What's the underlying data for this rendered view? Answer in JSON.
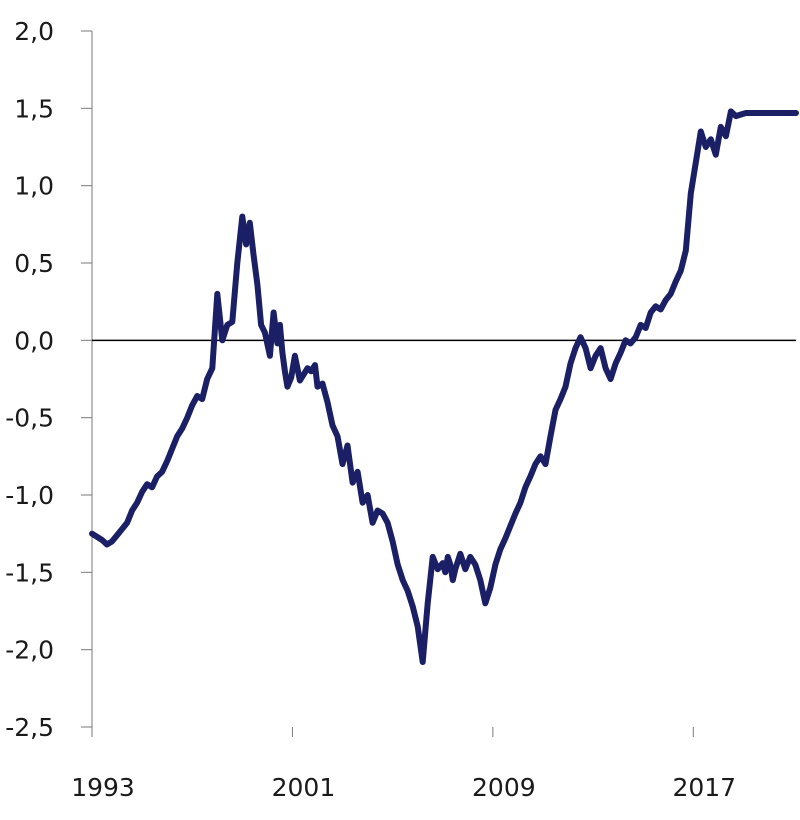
{
  "chart_data": {
    "type": "line",
    "title": "",
    "xlabel": "",
    "ylabel": "",
    "x_ticks": [
      {
        "value": 1993,
        "label": "1993"
      },
      {
        "value": 2001,
        "label": "2001"
      },
      {
        "value": 2009,
        "label": "2009"
      },
      {
        "value": 2017,
        "label": "2017"
      }
    ],
    "y_ticks": [
      {
        "value": 2.0,
        "label": "2,0"
      },
      {
        "value": 1.5,
        "label": "1,5"
      },
      {
        "value": 1.0,
        "label": "1,0"
      },
      {
        "value": 0.5,
        "label": "0,5"
      },
      {
        "value": 0.0,
        "label": "0,0"
      },
      {
        "value": -0.5,
        "label": "-0,5"
      },
      {
        "value": -1.0,
        "label": "-1,0"
      },
      {
        "value": -1.5,
        "label": "-1,5"
      },
      {
        "value": -2.0,
        "label": "-2,0"
      },
      {
        "value": -2.5,
        "label": "-2,5"
      }
    ],
    "xlim": [
      1993,
      2021.1
    ],
    "ylim": [
      -2.5,
      2.0
    ],
    "zero_line": true,
    "grid": false,
    "line_color": "#1b1f66",
    "series": [
      {
        "x": [
          1993.0,
          1993.2,
          1993.4,
          1993.6,
          1993.8,
          1994.0,
          1994.2,
          1994.4,
          1994.6,
          1994.8,
          1995.0,
          1995.2,
          1995.4,
          1995.6,
          1995.8,
          1996.0,
          1996.2,
          1996.4,
          1996.6,
          1996.8,
          1997.0,
          1997.2,
          1997.4,
          1997.6,
          1997.8,
          1998.0,
          1998.2,
          1998.4,
          1998.6,
          1998.8,
          1999.0,
          1999.15,
          1999.3,
          1999.45,
          1999.6,
          1999.75,
          1999.9,
          2000.1,
          2000.25,
          2000.4,
          2000.5,
          2000.6,
          2000.7,
          2000.8,
          2000.95,
          2001.1,
          2001.3,
          2001.45,
          2001.6,
          2001.75,
          2001.9,
          2002.0,
          2002.2,
          2002.4,
          2002.6,
          2002.8,
          2003.0,
          2003.2,
          2003.4,
          2003.6,
          2003.8,
          2004.0,
          2004.2,
          2004.4,
          2004.6,
          2004.8,
          2005.0,
          2005.2,
          2005.4,
          2005.6,
          2005.8,
          2006.0,
          2006.2,
          2006.4,
          2006.6,
          2006.8,
          2007.0,
          2007.1,
          2007.2,
          2007.3,
          2007.4,
          2007.5,
          2007.7,
          2007.9,
          2008.1,
          2008.3,
          2008.5,
          2008.7,
          2008.9,
          2009.1,
          2009.3,
          2009.5,
          2009.7,
          2009.9,
          2010.1,
          2010.3,
          2010.5,
          2010.7,
          2010.9,
          2011.1,
          2011.3,
          2011.5,
          2011.7,
          2011.9,
          2012.1,
          2012.3,
          2012.5,
          2012.7,
          2012.9,
          2013.1,
          2013.3,
          2013.5,
          2013.7,
          2013.9,
          2014.1,
          2014.3,
          2014.5,
          2014.7,
          2014.9,
          2015.1,
          2015.3,
          2015.5,
          2015.7,
          2015.9,
          2016.1,
          2016.3,
          2016.5,
          2016.7,
          2016.9,
          2017.1,
          2017.3,
          2017.5,
          2017.7,
          2017.9,
          2018.1,
          2018.3,
          2018.5,
          2018.7,
          2018.9,
          2019.1,
          2019.3,
          2019.5,
          2019.7,
          2019.9,
          2020.1,
          2020.3,
          2020.5,
          2020.7,
          2020.9,
          2021.1
        ],
        "values": [
          -1.25,
          -1.27,
          -1.29,
          -1.32,
          -1.3,
          -1.26,
          -1.22,
          -1.18,
          -1.1,
          -1.05,
          -0.98,
          -0.93,
          -0.95,
          -0.88,
          -0.85,
          -0.78,
          -0.7,
          -0.62,
          -0.57,
          -0.5,
          -0.42,
          -0.36,
          -0.38,
          -0.25,
          -0.18,
          0.3,
          0.0,
          0.1,
          0.12,
          0.5,
          0.8,
          0.62,
          0.76,
          0.55,
          0.36,
          0.1,
          0.05,
          -0.1,
          0.18,
          -0.02,
          0.1,
          -0.08,
          -0.2,
          -0.3,
          -0.24,
          -0.1,
          -0.26,
          -0.22,
          -0.18,
          -0.2,
          -0.16,
          -0.3,
          -0.28,
          -0.4,
          -0.55,
          -0.62,
          -0.8,
          -0.68,
          -0.92,
          -0.85,
          -1.05,
          -1.0,
          -1.18,
          -1.1,
          -1.12,
          -1.18,
          -1.3,
          -1.45,
          -1.55,
          -1.62,
          -1.72,
          -1.85,
          -2.08,
          -1.7,
          -1.4,
          -1.48,
          -1.44,
          -1.5,
          -1.4,
          -1.45,
          -1.55,
          -1.48,
          -1.38,
          -1.48,
          -1.4,
          -1.45,
          -1.55,
          -1.7,
          -1.6,
          -1.45,
          -1.35,
          -1.28,
          -1.2,
          -1.12,
          -1.05,
          -0.95,
          -0.88,
          -0.8,
          -0.75,
          -0.8,
          -0.62,
          -0.45,
          -0.38,
          -0.3,
          -0.15,
          -0.05,
          0.02,
          -0.05,
          -0.18,
          -0.1,
          -0.05,
          -0.18,
          -0.25,
          -0.15,
          -0.08,
          0.0,
          -0.02,
          0.02,
          0.1,
          0.08,
          0.18,
          0.22,
          0.2,
          0.26,
          0.3,
          0.38,
          0.45,
          0.58,
          0.95,
          1.15,
          1.35,
          1.25,
          1.3,
          1.2,
          1.38,
          1.32,
          1.48,
          1.45,
          1.46,
          1.47,
          1.47,
          1.47,
          1.47,
          1.47,
          1.47,
          1.47,
          1.47,
          1.47,
          1.47,
          1.47
        ]
      }
    ]
  }
}
